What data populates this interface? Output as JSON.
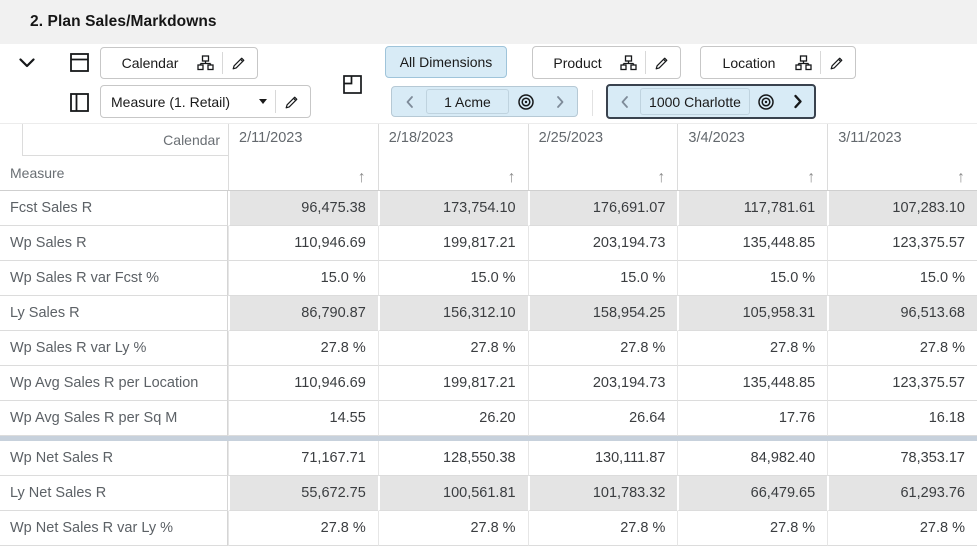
{
  "title": "2. Plan Sales/Markdowns",
  "toolbar": {
    "calendar_label": "Calendar",
    "measure_label": "Measure (1. Retail)",
    "all_dimensions_label": "All Dimensions",
    "product_label": "Product",
    "location_label": "Location",
    "product_pager_value": "1 Acme",
    "location_pager_value": "1000 Charlotte"
  },
  "colors": {
    "accent_fill": "#d8ebf6",
    "shaded_cell": "#e4e4e4",
    "separator": "#c7d1dc",
    "titlebar_bg": "#f1f1f1"
  },
  "chart_data": {
    "type": "table",
    "corner_top_label": "Calendar",
    "corner_bottom_label": "Measure",
    "columns": [
      "2/11/2023",
      "2/18/2023",
      "2/25/2023",
      "3/4/2023",
      "3/11/2023"
    ],
    "rows": [
      {
        "measure": "Fcst Sales R",
        "shaded": true,
        "separator_after": false,
        "values": [
          "96,475.38",
          "173,754.10",
          "176,691.07",
          "117,781.61",
          "107,283.10"
        ]
      },
      {
        "measure": "Wp Sales R",
        "shaded": false,
        "separator_after": false,
        "values": [
          "110,946.69",
          "199,817.21",
          "203,194.73",
          "135,448.85",
          "123,375.57"
        ]
      },
      {
        "measure": "Wp Sales R var Fcst %",
        "shaded": false,
        "separator_after": false,
        "values": [
          "15.0 %",
          "15.0 %",
          "15.0 %",
          "15.0 %",
          "15.0 %"
        ]
      },
      {
        "measure": "Ly Sales R",
        "shaded": true,
        "separator_after": false,
        "values": [
          "86,790.87",
          "156,312.10",
          "158,954.25",
          "105,958.31",
          "96,513.68"
        ]
      },
      {
        "measure": "Wp Sales R var Ly %",
        "shaded": false,
        "separator_after": false,
        "values": [
          "27.8 %",
          "27.8 %",
          "27.8 %",
          "27.8 %",
          "27.8 %"
        ]
      },
      {
        "measure": "Wp Avg Sales R per Location",
        "shaded": false,
        "separator_after": false,
        "values": [
          "110,946.69",
          "199,817.21",
          "203,194.73",
          "135,448.85",
          "123,375.57"
        ]
      },
      {
        "measure": "Wp Avg Sales R per Sq M",
        "shaded": false,
        "separator_after": true,
        "values": [
          "14.55",
          "26.20",
          "26.64",
          "17.76",
          "16.18"
        ]
      },
      {
        "measure": "Wp Net Sales R",
        "shaded": false,
        "separator_after": false,
        "values": [
          "71,167.71",
          "128,550.38",
          "130,111.87",
          "84,982.40",
          "78,353.17"
        ]
      },
      {
        "measure": "Ly Net Sales R",
        "shaded": true,
        "separator_after": false,
        "values": [
          "55,672.75",
          "100,561.81",
          "101,783.32",
          "66,479.65",
          "61,293.76"
        ]
      },
      {
        "measure": "Wp Net Sales R var Ly %",
        "shaded": false,
        "separator_after": false,
        "values": [
          "27.8 %",
          "27.8 %",
          "27.8 %",
          "27.8 %",
          "27.8 %"
        ]
      }
    ]
  }
}
